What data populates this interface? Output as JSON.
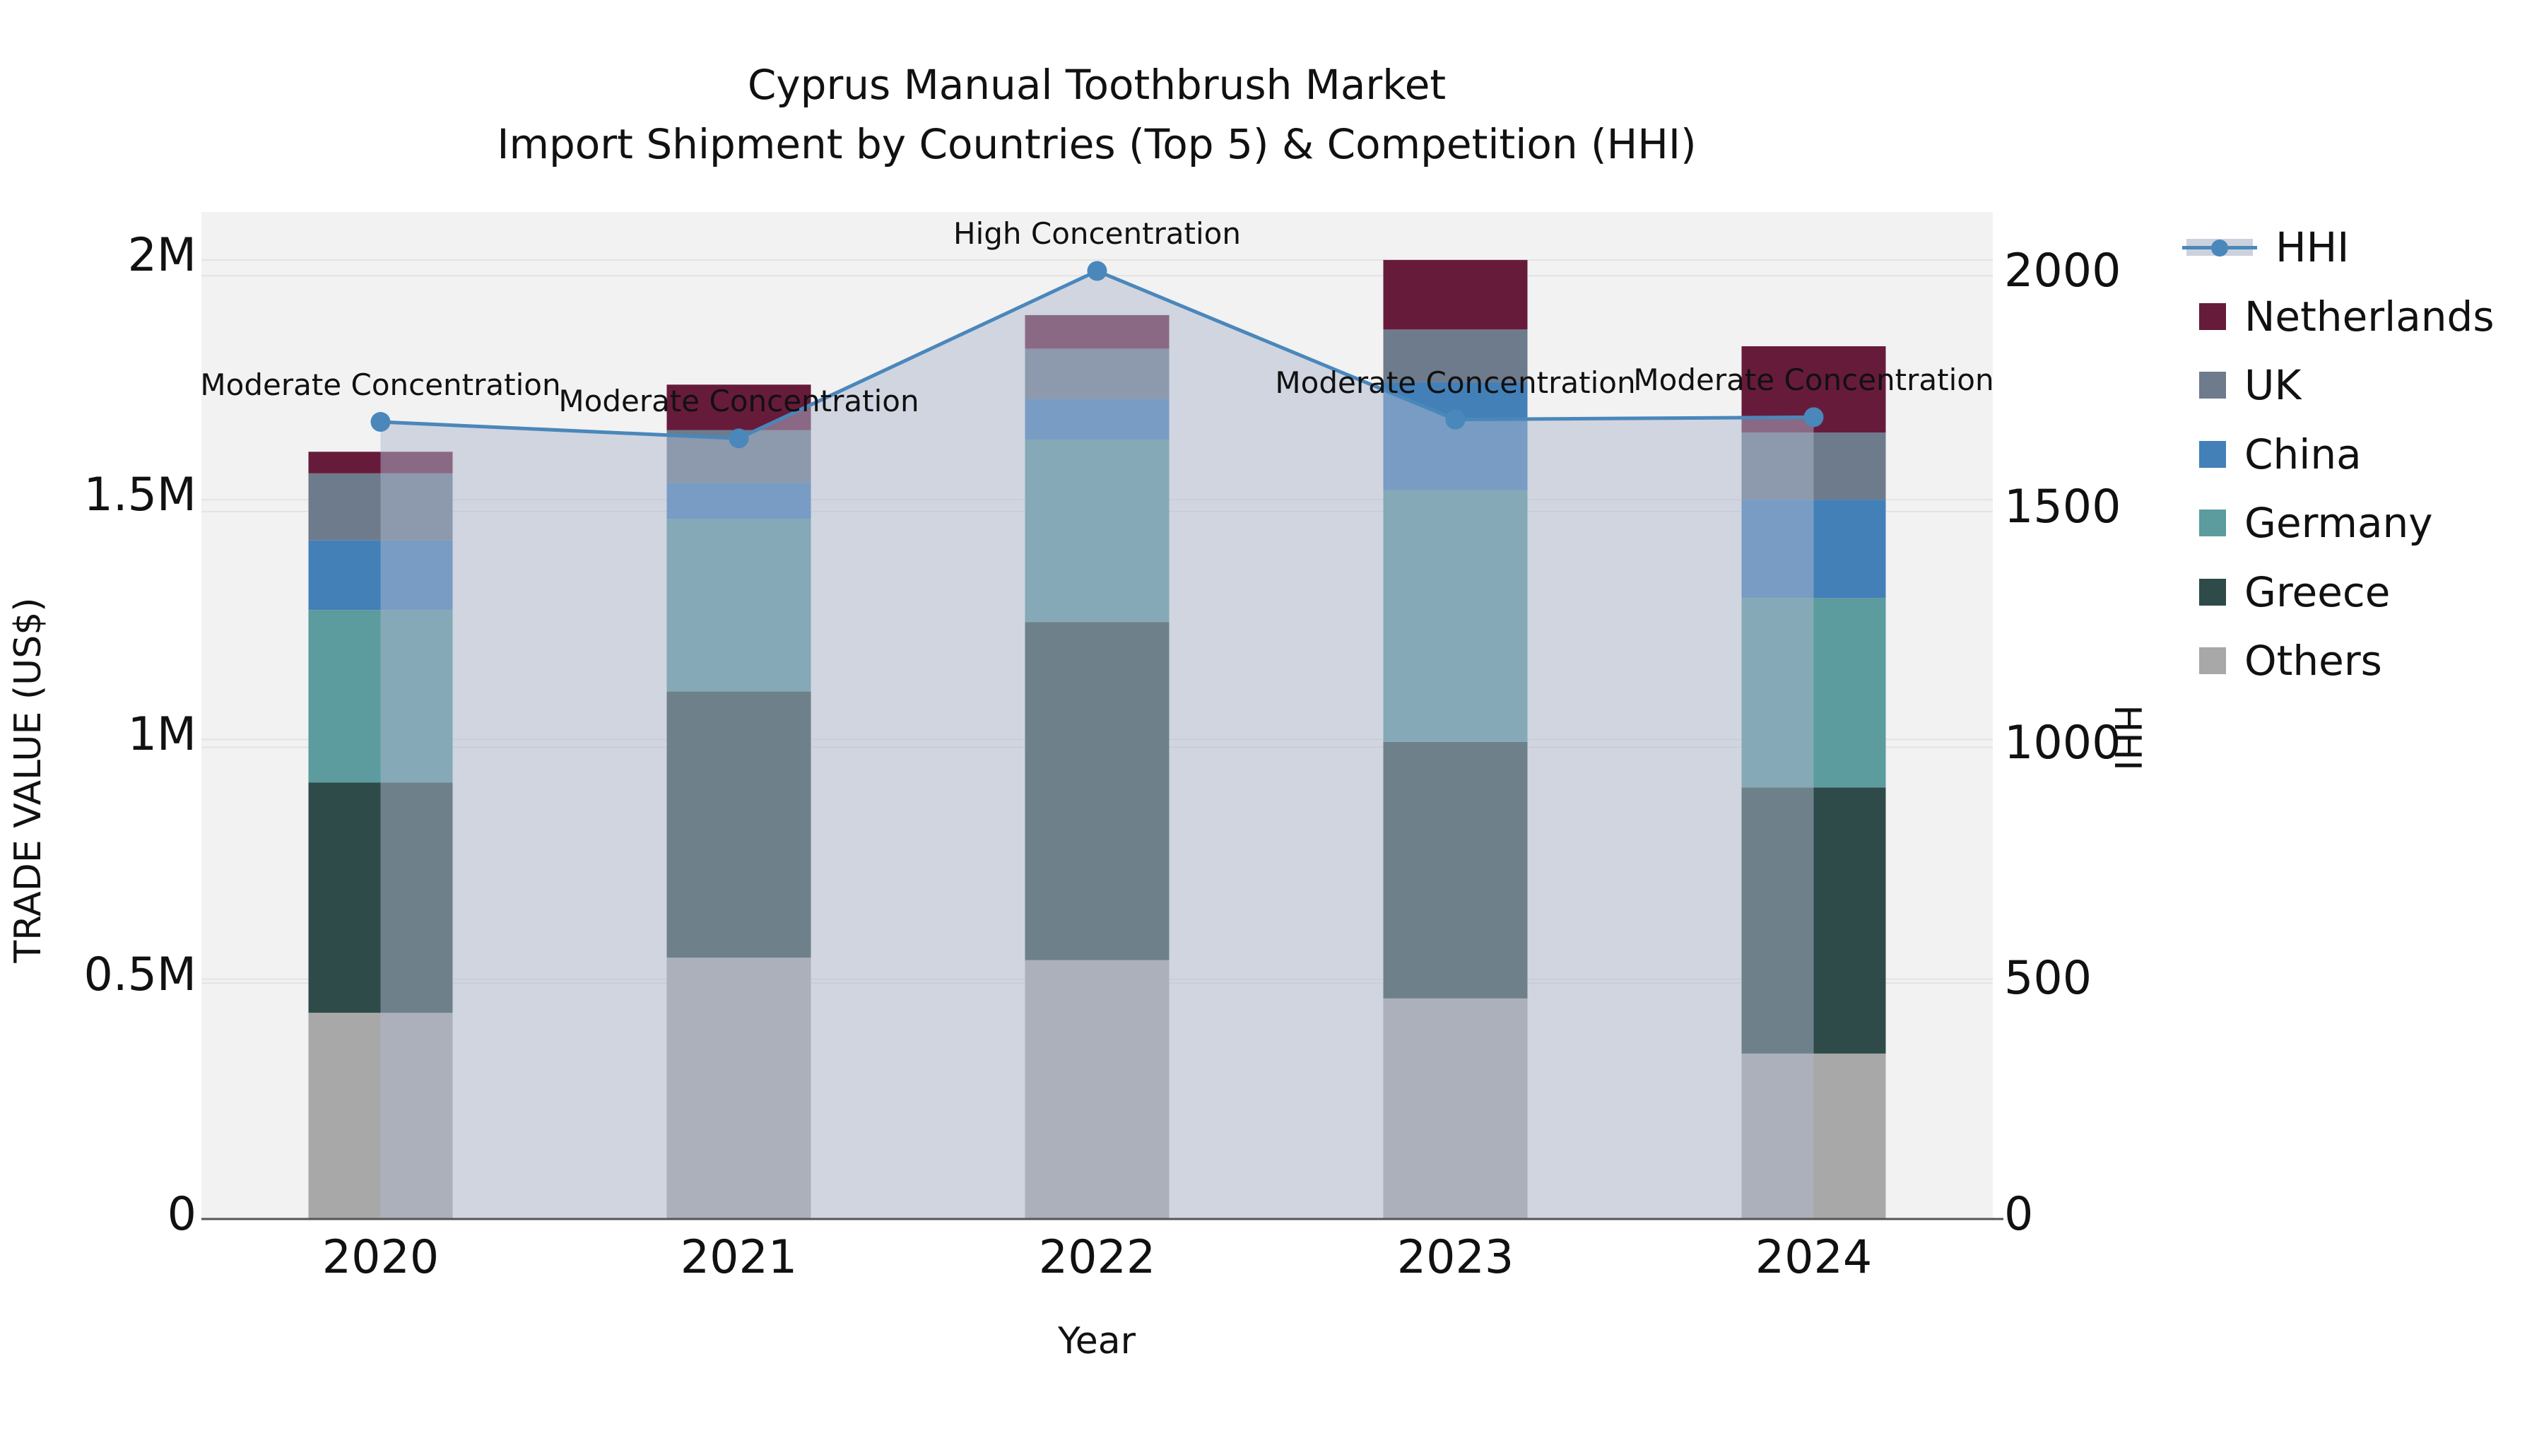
{
  "title": {
    "line1": "Cyprus Manual Toothbrush Market",
    "line2": "Import Shipment by Countries (Top 5) & Competition (HHI)"
  },
  "axes": {
    "left": {
      "label": "TRADE VALUE (US$)",
      "tick_labels": [
        "0",
        "0.5M",
        "1M",
        "1.5M",
        "2M"
      ],
      "tick_values": [
        0,
        500000,
        1000000,
        1500000,
        2000000
      ]
    },
    "right": {
      "label": "HHI",
      "tick_labels": [
        "0",
        "500",
        "1000",
        "1500",
        "2000"
      ],
      "tick_values": [
        0,
        500,
        1000,
        1500,
        2000
      ]
    },
    "x": {
      "label": "Year",
      "tick_labels": [
        "2020",
        "2021",
        "2022",
        "2023",
        "2024"
      ]
    }
  },
  "legend": {
    "items": [
      {
        "label": "HHI",
        "type": "line",
        "color": "#4a87bb"
      },
      {
        "label": "Netherlands",
        "type": "swatch",
        "color": "#671b3b"
      },
      {
        "label": "UK",
        "type": "swatch",
        "color": "#6d7b8c"
      },
      {
        "label": "China",
        "type": "swatch",
        "color": "#4380b8"
      },
      {
        "label": "Germany",
        "type": "swatch",
        "color": "#5c9b9e"
      },
      {
        "label": "Greece",
        "type": "swatch",
        "color": "#2e4b49"
      },
      {
        "label": "Others",
        "type": "swatch",
        "color": "#a8a8a8"
      }
    ]
  },
  "chart_data": {
    "type": "bar",
    "subtype": "stacked-bars-with-line-overlay",
    "title": "Cyprus Manual Toothbrush Market — Import Shipment by Countries (Top 5) & Competition (HHI)",
    "xlabel": "Year",
    "ylabel_left": "TRADE VALUE (US$)",
    "ylabel_right": "HHI",
    "categories": [
      "2020",
      "2021",
      "2022",
      "2023",
      "2024"
    ],
    "series": [
      {
        "name": "Others",
        "color": "#a8a8a8",
        "values": [
          430000,
          545000,
          540000,
          460000,
          345000
        ]
      },
      {
        "name": "Greece",
        "color": "#2e4b49",
        "values": [
          480000,
          555000,
          705000,
          535000,
          555000
        ]
      },
      {
        "name": "Germany",
        "color": "#5c9b9e",
        "values": [
          360000,
          360000,
          380000,
          525000,
          395000
        ]
      },
      {
        "name": "China",
        "color": "#4380b8",
        "values": [
          145000,
          75000,
          85000,
          225000,
          205000
        ]
      },
      {
        "name": "UK",
        "color": "#6d7b8c",
        "values": [
          140000,
          110000,
          105000,
          110000,
          140000
        ]
      },
      {
        "name": "Netherlands",
        "color": "#671b3b",
        "values": [
          45000,
          95000,
          70000,
          145000,
          180000
        ]
      }
    ],
    "bar_totals": [
      1600000,
      1740000,
      1885000,
      2000000,
      1820000
    ],
    "hhi_line": {
      "name": "HHI",
      "color": "#4a87bb",
      "area_fill": "rgba(174,184,205,0.5)",
      "values": [
        1690,
        1655,
        2010,
        1695,
        1700
      ]
    },
    "annotations": [
      {
        "category": "2020",
        "text": "Moderate Concentration"
      },
      {
        "category": "2021",
        "text": "Moderate Concentration"
      },
      {
        "category": "2022",
        "text": "High Concentration"
      },
      {
        "category": "2023",
        "text": "Moderate Concentration"
      },
      {
        "category": "2024",
        "text": "Moderate Concentration"
      }
    ],
    "ylim_left": [
      0,
      2100000
    ],
    "ylim_right": [
      0,
      2135
    ],
    "grid": true,
    "legend_position": "right",
    "plot_background": "#f2f2f2",
    "grid_color": "#e3e3e3",
    "axis_line_color": "#555555"
  }
}
